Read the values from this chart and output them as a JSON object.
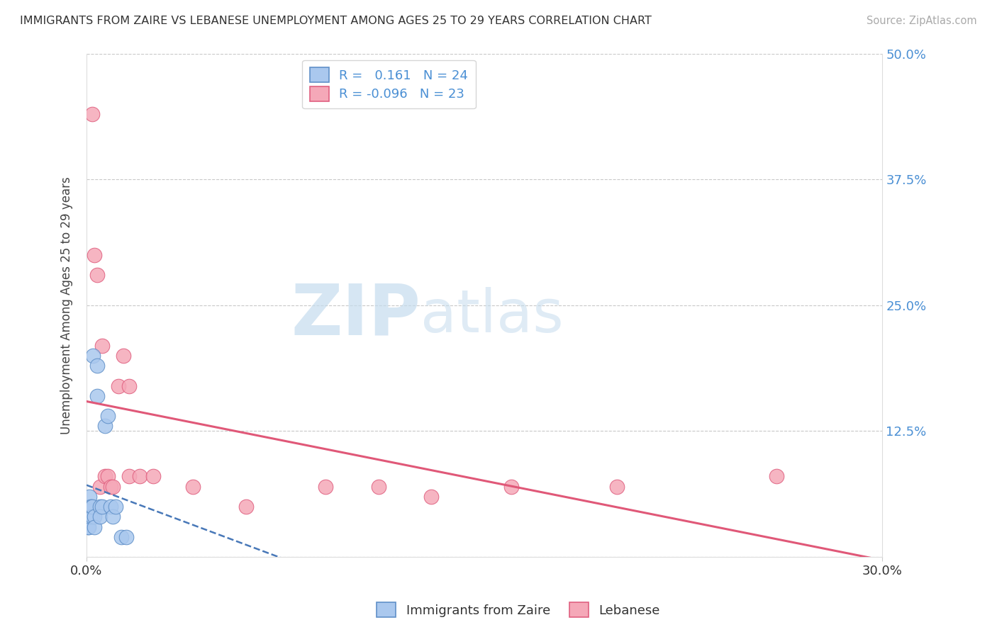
{
  "title": "IMMIGRANTS FROM ZAIRE VS LEBANESE UNEMPLOYMENT AMONG AGES 25 TO 29 YEARS CORRELATION CHART",
  "source": "Source: ZipAtlas.com",
  "ylabel": "Unemployment Among Ages 25 to 29 years",
  "x_min": 0.0,
  "x_max": 0.3,
  "y_min": 0.0,
  "y_max": 0.5,
  "x_ticks": [
    0.0,
    0.3
  ],
  "x_tick_labels": [
    "0.0%",
    "30.0%"
  ],
  "y_ticks": [
    0.0,
    0.125,
    0.25,
    0.375,
    0.5
  ],
  "y_tick_labels_right": [
    "",
    "12.5%",
    "25.0%",
    "37.5%",
    "50.0%"
  ],
  "legend_labels": [
    "Immigrants from Zaire",
    "Lebanese"
  ],
  "zaire_color": "#aac8ee",
  "lebanese_color": "#f5a8b8",
  "zaire_edge": "#6090c8",
  "lebanese_edge": "#e06080",
  "zaire_trend_color": "#4878b8",
  "lebanese_trend_color": "#e05878",
  "R_zaire": 0.161,
  "N_zaire": 24,
  "R_lebanese": -0.096,
  "N_lebanese": 23,
  "grid_color": "#c8c8c8",
  "watermark_zip": "ZIP",
  "watermark_atlas": "atlas",
  "watermark_color_zip": "#c8dff0",
  "watermark_color_atlas": "#c8dff0",
  "background_color": "#ffffff",
  "zaire_x": [
    0.0003,
    0.0005,
    0.0007,
    0.001,
    0.001,
    0.0012,
    0.0015,
    0.002,
    0.002,
    0.0025,
    0.003,
    0.003,
    0.004,
    0.004,
    0.005,
    0.005,
    0.006,
    0.007,
    0.008,
    0.009,
    0.01,
    0.011,
    0.013,
    0.015
  ],
  "zaire_y": [
    0.04,
    0.03,
    0.03,
    0.05,
    0.06,
    0.04,
    0.05,
    0.04,
    0.05,
    0.2,
    0.04,
    0.03,
    0.19,
    0.16,
    0.05,
    0.04,
    0.05,
    0.13,
    0.14,
    0.05,
    0.04,
    0.05,
    0.02,
    0.02
  ],
  "lebanese_x": [
    0.002,
    0.003,
    0.004,
    0.005,
    0.006,
    0.007,
    0.008,
    0.009,
    0.01,
    0.012,
    0.014,
    0.016,
    0.016,
    0.02,
    0.025,
    0.04,
    0.06,
    0.09,
    0.11,
    0.13,
    0.16,
    0.2,
    0.26
  ],
  "lebanese_y": [
    0.44,
    0.3,
    0.28,
    0.07,
    0.21,
    0.08,
    0.08,
    0.07,
    0.07,
    0.17,
    0.2,
    0.08,
    0.17,
    0.08,
    0.08,
    0.07,
    0.05,
    0.07,
    0.07,
    0.06,
    0.07,
    0.07,
    0.08
  ]
}
